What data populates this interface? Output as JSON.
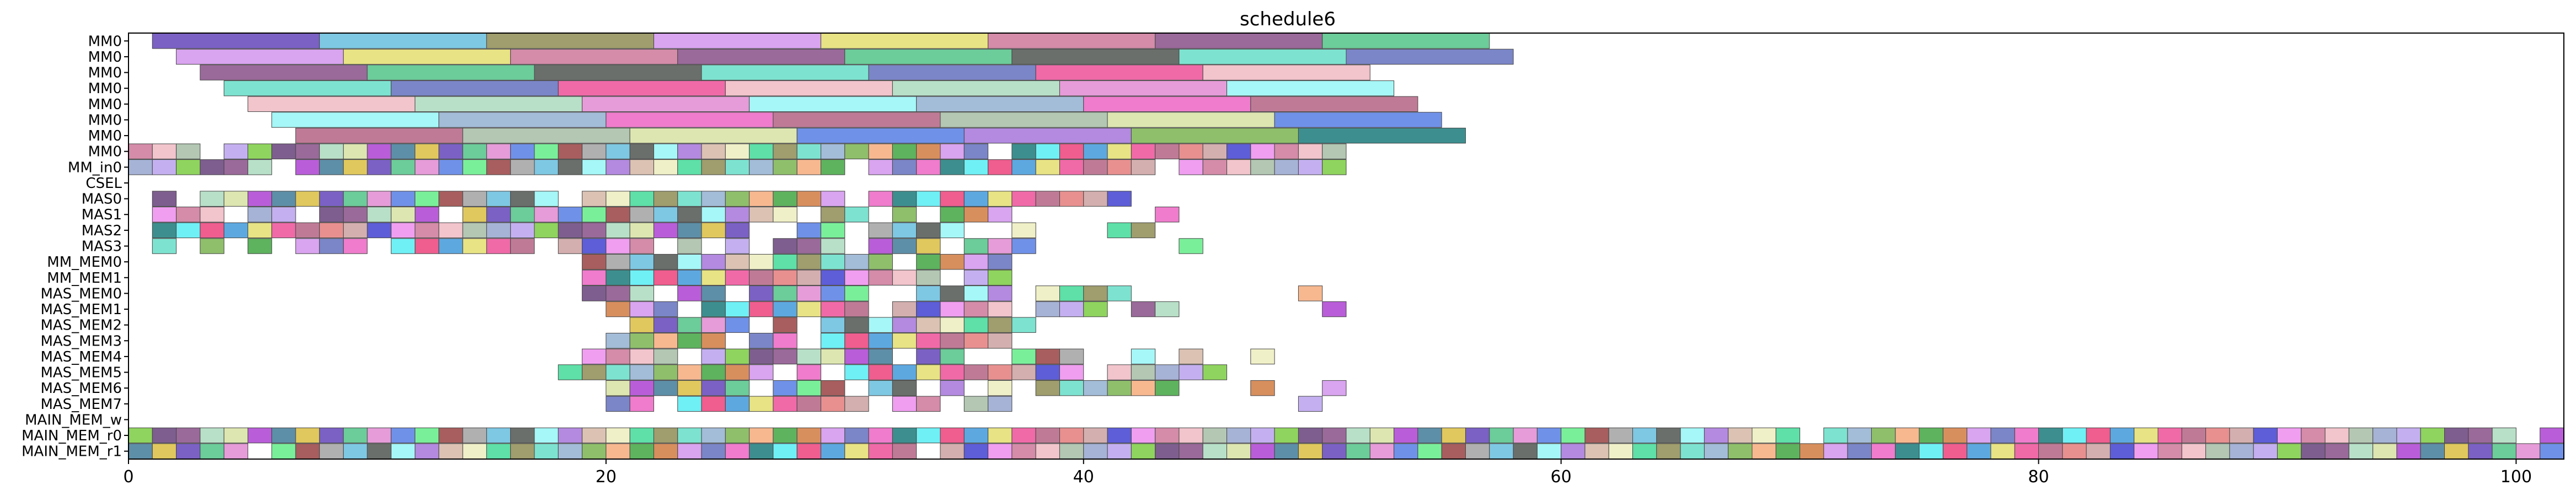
{
  "chart_data": {
    "type": "gantt",
    "title": "schedule6",
    "xlim": [
      0,
      102
    ],
    "x_ticks": [
      "0",
      "20",
      "40",
      "60",
      "80",
      "100"
    ],
    "x_tick_values": [
      0,
      20,
      40,
      60,
      80,
      100
    ],
    "rows": [
      "MM0",
      "MM0",
      "MM0",
      "MM0",
      "MM0",
      "MM0",
      "MM0",
      "MM0",
      "MM_in0",
      "CSEL",
      "MAS0",
      "MAS1",
      "MAS2",
      "MAS3",
      "MM_MEM0",
      "MM_MEM1",
      "MAS_MEM0",
      "MAS_MEM1",
      "MAS_MEM2",
      "MAS_MEM3",
      "MAS_MEM4",
      "MAS_MEM5",
      "MAS_MEM6",
      "MAS_MEM7",
      "MAIN_MEM_w",
      "MAIN_MEM_r0",
      "MAIN_MEM_r1"
    ],
    "palette": [
      "#7b61c4",
      "#7ec8e3",
      "#a09d6e",
      "#d9a4f0",
      "#e8e384",
      "#d48ca8",
      "#9a6a9a",
      "#6ccc9a",
      "#6b6f6b",
      "#7de3d0",
      "#7b86c8",
      "#f06aa8",
      "#f2c4cc",
      "#b8e0c8",
      "#e69cd8",
      "#a6f7f7",
      "#a3bcd8",
      "#ef7ccc",
      "#bf7b96",
      "#b3c7b3",
      "#dde6b0",
      "#7091e8",
      "#b38ae0",
      "#8fbf6b",
      "#3d8f8f",
      "#e89090",
      "#a6b3d6",
      "#b95ed8",
      "#7aef9a",
      "#dbc2b3",
      "#f7b890",
      "#6ff0f5",
      "#d4afaf",
      "#c4b0f0",
      "#5e8fa8",
      "#a85e5e",
      "#f0f0c8",
      "#5eb35e",
      "#ef5e8f",
      "#5e5ed8",
      "#8fd45e",
      "#e0c85e",
      "#b0b0b0",
      "#5ee0a8",
      "#d88f5e",
      "#5ea8e0",
      "#f09ef0",
      "#7e5e8f"
    ],
    "row_tasks": [
      [
        [
          1,
          8
        ],
        [
          8,
          15
        ],
        [
          15,
          22
        ],
        [
          22,
          29
        ],
        [
          29,
          36
        ],
        [
          36,
          43
        ],
        [
          43,
          50
        ],
        [
          50,
          57
        ]
      ],
      [
        [
          2,
          9
        ],
        [
          9,
          16
        ],
        [
          16,
          23
        ],
        [
          23,
          30
        ],
        [
          30,
          37
        ],
        [
          37,
          44
        ],
        [
          44,
          51
        ],
        [
          51,
          58
        ]
      ],
      [
        [
          3,
          10
        ],
        [
          10,
          17
        ],
        [
          17,
          24
        ],
        [
          24,
          31
        ],
        [
          31,
          38
        ],
        [
          38,
          45
        ],
        [
          45,
          52
        ]
      ],
      [
        [
          4,
          11
        ],
        [
          11,
          18
        ],
        [
          18,
          25
        ],
        [
          25,
          32
        ],
        [
          32,
          39
        ],
        [
          39,
          46
        ],
        [
          46,
          53
        ]
      ],
      [
        [
          5,
          12
        ],
        [
          12,
          19
        ],
        [
          19,
          26
        ],
        [
          26,
          33
        ],
        [
          33,
          40
        ],
        [
          40,
          47
        ],
        [
          47,
          54
        ]
      ],
      [
        [
          6,
          13
        ],
        [
          13,
          20
        ],
        [
          20,
          27
        ],
        [
          27,
          34
        ],
        [
          34,
          41
        ],
        [
          41,
          48
        ],
        [
          48,
          55
        ]
      ],
      [
        [
          7,
          14
        ],
        [
          14,
          21
        ],
        [
          21,
          28
        ],
        [
          28,
          35
        ],
        [
          35,
          42
        ],
        [
          42,
          49
        ],
        [
          49,
          56
        ]
      ]
    ]
  }
}
